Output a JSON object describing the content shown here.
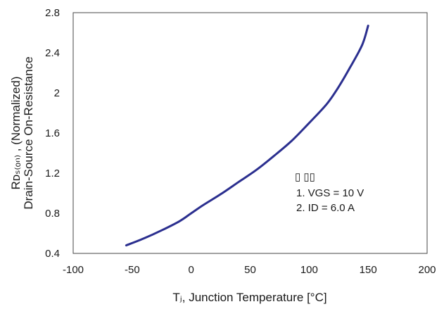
{
  "chart_data": {
    "type": "line",
    "xlabel": "Tⱼ, Junction Temperature [°C]",
    "ylabel_line1": "Rᴅₛ₍ₒₙ₎ , (Normalized)",
    "ylabel_line2": "Drain-Source On-Resistance",
    "xlim": [
      -100,
      200
    ],
    "ylim": [
      0.4,
      2.8
    ],
    "xticks": [
      "-100",
      "-50",
      "0",
      "50",
      "100",
      "150",
      "200"
    ],
    "yticks": [
      "0.4",
      "0.8",
      "1.2",
      "1.6",
      "2",
      "2.4",
      "2.8"
    ],
    "grid": false,
    "series": [
      {
        "color": "#2b2f8f",
        "x": [
          -55,
          -40,
          -25,
          -10,
          0,
          10,
          25,
          40,
          55,
          70,
          85,
          100,
          115,
          125,
          135,
          145,
          150
        ],
        "y": [
          0.48,
          0.55,
          0.63,
          0.72,
          0.8,
          0.88,
          0.99,
          1.11,
          1.23,
          1.37,
          1.52,
          1.7,
          1.89,
          2.06,
          2.26,
          2.48,
          2.67
        ]
      }
    ],
    "notes": {
      "boxes": "▯  ▯▯",
      "line1": "1. VGS = 10 V",
      "line2": "2. ID = 6.0 A"
    }
  }
}
